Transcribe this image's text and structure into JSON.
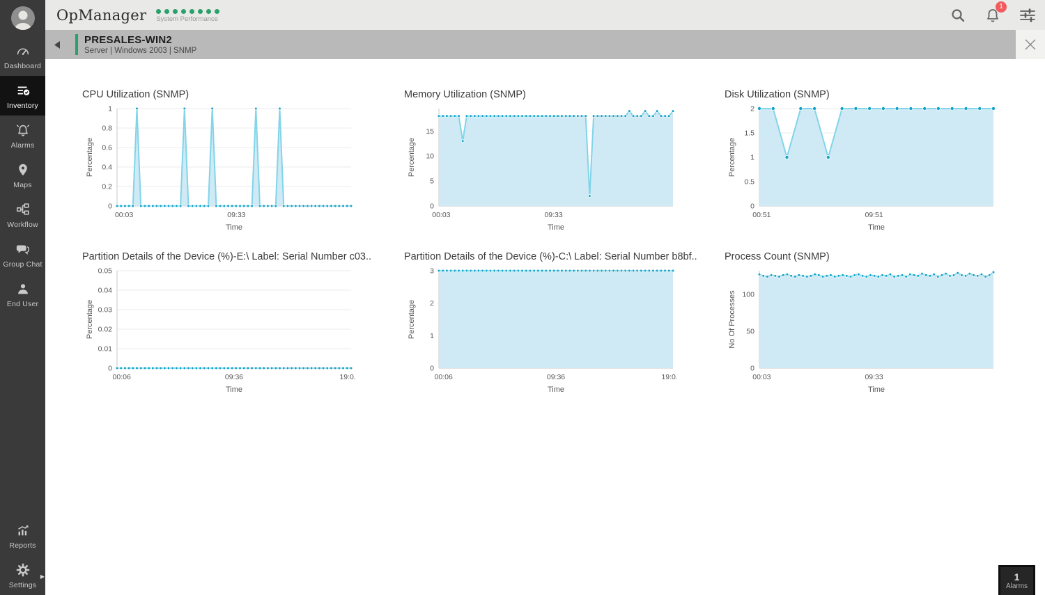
{
  "app": {
    "logo": "OpManager",
    "tagline": "System Performance",
    "status_dots_count": 8,
    "accent_green": "#2aa06a",
    "badge_red": "#f25b5b"
  },
  "header": {
    "notification_count": "1",
    "icons": [
      "search-icon",
      "notifications-icon",
      "filter-icon"
    ]
  },
  "sidebar": {
    "items": [
      {
        "label": "Dashboard",
        "icon": "gauge"
      },
      {
        "label": "Inventory",
        "icon": "inventory",
        "active": true
      },
      {
        "label": "Alarms",
        "icon": "bell"
      },
      {
        "label": "Maps",
        "icon": "pin"
      },
      {
        "label": "Workflow",
        "icon": "workflow"
      },
      {
        "label": "Group Chat",
        "icon": "chat"
      },
      {
        "label": "End User",
        "icon": "person"
      },
      {
        "label": "Reports",
        "icon": "reports"
      },
      {
        "label": "Settings",
        "icon": "gear"
      }
    ]
  },
  "titlebar": {
    "title": "PRESALES-WIN2",
    "subtitle": "Server | Windows 2003  | SNMP"
  },
  "alarm_box": {
    "count": "1",
    "label": "Alarms"
  },
  "chart_colors": {
    "line": "#82d4e8",
    "dot": "#12a3c7",
    "fill": "#cce9f4",
    "grid": "#ebebeb",
    "axis": "#c9c9c9"
  },
  "chart_data": [
    {
      "type": "area",
      "title": "CPU Utilization (SNMP)",
      "ylabel": "Percentage",
      "xlabel": "Time",
      "ylim": [
        0,
        1
      ],
      "yticks": [
        0,
        0.2,
        0.4,
        0.6,
        0.8,
        1
      ],
      "xticks": [
        {
          "label": "00:03",
          "f": 0.03
        },
        {
          "label": "09:33",
          "f": 0.51
        }
      ],
      "values": [
        0,
        0,
        0,
        0,
        0,
        1,
        0,
        0,
        0,
        0,
        0,
        0,
        0,
        0,
        0,
        0,
        0,
        1,
        0,
        0,
        0,
        0,
        0,
        0,
        1,
        0,
        0,
        0,
        0,
        0,
        0,
        0,
        0,
        0,
        0,
        1,
        0,
        0,
        0,
        0,
        0,
        1,
        0,
        0,
        0,
        0,
        0,
        0,
        0,
        0,
        0,
        0,
        0,
        0,
        0,
        0,
        0,
        0,
        0,
        0
      ]
    },
    {
      "type": "area",
      "title": "Memory Utilization (SNMP)",
      "ylabel": "Percentage",
      "xlabel": "Time",
      "ylim": [
        0,
        19.5
      ],
      "yticks": [
        0,
        5,
        10,
        15
      ],
      "xticks": [
        {
          "label": "00:03",
          "f": 0.01
        },
        {
          "label": "09:33",
          "f": 0.49
        }
      ],
      "values": [
        18,
        18,
        18,
        18,
        18,
        18,
        13,
        18,
        18,
        18,
        18,
        18,
        18,
        18,
        18,
        18,
        18,
        18,
        18,
        18,
        18,
        18,
        18,
        18,
        18,
        18,
        18,
        18,
        18,
        18,
        18,
        18,
        18,
        18,
        18,
        18,
        18,
        18,
        2,
        18,
        18,
        18,
        18,
        18,
        18,
        18,
        18,
        18,
        19,
        18,
        18,
        18,
        19,
        18,
        18,
        19,
        18,
        18,
        18,
        19
      ]
    },
    {
      "type": "area",
      "title": "Disk Utilization (SNMP)",
      "ylabel": "Percentage",
      "xlabel": "Time",
      "ylim": [
        0,
        2
      ],
      "yticks": [
        0,
        0.5,
        1,
        1.5,
        2
      ],
      "xticks": [
        {
          "label": "00:51",
          "f": 0.01
        },
        {
          "label": "09:51",
          "f": 0.49
        }
      ],
      "values": [
        2,
        2,
        1,
        2,
        2,
        1,
        2,
        2,
        2,
        2,
        2,
        2,
        2,
        2,
        2,
        2,
        2,
        2
      ]
    },
    {
      "type": "area",
      "title": "Partition Details of the Device (%)-E:\\ Label: Serial Number c03..",
      "ylabel": "Percentage",
      "xlabel": "Time",
      "ylim": [
        0,
        0.05
      ],
      "yticks": [
        0,
        0.01,
        0.02,
        0.03,
        0.04,
        0.05
      ],
      "xticks": [
        {
          "label": "00:06",
          "f": 0.02
        },
        {
          "label": "09:36",
          "f": 0.5
        },
        {
          "label": "19:0..",
          "f": 0.99
        }
      ],
      "values": [
        0,
        0,
        0,
        0,
        0,
        0,
        0,
        0,
        0,
        0,
        0,
        0,
        0,
        0,
        0,
        0,
        0,
        0,
        0,
        0,
        0,
        0,
        0,
        0,
        0,
        0,
        0,
        0,
        0,
        0,
        0,
        0,
        0,
        0,
        0,
        0,
        0,
        0,
        0,
        0,
        0,
        0,
        0,
        0,
        0,
        0,
        0,
        0,
        0,
        0,
        0,
        0,
        0,
        0,
        0,
        0,
        0,
        0,
        0,
        0
      ]
    },
    {
      "type": "area",
      "title": "Partition Details of the Device (%)-C:\\ Label: Serial Number b8bf..",
      "ylabel": "Percentage",
      "xlabel": "Time",
      "ylim": [
        0,
        3
      ],
      "yticks": [
        0,
        1,
        2,
        3
      ],
      "xticks": [
        {
          "label": "00:06",
          "f": 0.02
        },
        {
          "label": "09:36",
          "f": 0.5
        },
        {
          "label": "19:0..",
          "f": 0.99
        }
      ],
      "values": [
        3,
        3,
        3,
        3,
        3,
        3,
        3,
        3,
        3,
        3,
        3,
        3,
        3,
        3,
        3,
        3,
        3,
        3,
        3,
        3,
        3,
        3,
        3,
        3,
        3,
        3,
        3,
        3,
        3,
        3,
        3,
        3,
        3,
        3,
        3,
        3,
        3,
        3,
        3,
        3,
        3,
        3,
        3,
        3,
        3,
        3,
        3,
        3,
        3,
        3,
        3,
        3,
        3,
        3,
        3,
        3,
        3,
        3,
        3,
        3
      ]
    },
    {
      "type": "area",
      "title": "Process Count (SNMP)",
      "ylabel": "No Of Processes",
      "xlabel": "Time",
      "ylim": [
        0,
        132
      ],
      "yticks": [
        0,
        50,
        100
      ],
      "xticks": [
        {
          "label": "00:03",
          "f": 0.01
        },
        {
          "label": "09:33",
          "f": 0.49
        }
      ],
      "values": [
        127,
        125,
        124,
        126,
        125,
        124,
        126,
        127,
        125,
        124,
        126,
        125,
        124,
        125,
        127,
        126,
        124,
        125,
        126,
        124,
        125,
        126,
        125,
        124,
        126,
        127,
        125,
        124,
        126,
        125,
        124,
        126,
        125,
        127,
        124,
        125,
        126,
        124,
        127,
        126,
        125,
        128,
        126,
        125,
        127,
        124,
        126,
        128,
        125,
        126,
        129,
        126,
        125,
        128,
        126,
        125,
        127,
        124,
        126,
        130
      ]
    }
  ]
}
